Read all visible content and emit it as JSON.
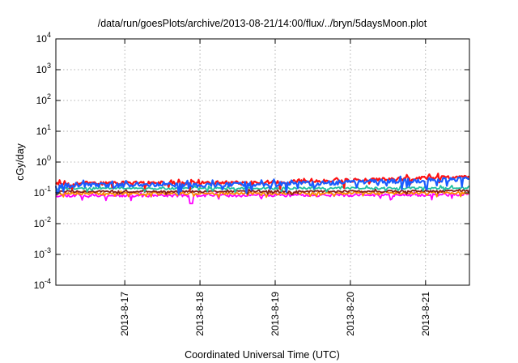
{
  "chart_data": {
    "type": "line",
    "title": "/data/run/goesPlots/archive/2013-08-21/14:00/flux/../bryn/5daysMoon.plot",
    "xlabel": "Coordinated Universal Time (UTC)",
    "ylabel": "cGy/day",
    "x_range_days": [
      "2013-8-16 02:00",
      "2013-8-21 14:00"
    ],
    "x_ticks": [
      "2013-8-17",
      "2013-8-18",
      "2013-8-19",
      "2013-8-20",
      "2013-8-21"
    ],
    "y_scale": "log",
    "ylim": [
      0.0001,
      10000
    ],
    "y_ticks": [
      {
        "base": "10",
        "exp": "-4"
      },
      {
        "base": "10",
        "exp": "-3"
      },
      {
        "base": "10",
        "exp": "-2"
      },
      {
        "base": "10",
        "exp": "-1"
      },
      {
        "base": "10",
        "exp": "0"
      },
      {
        "base": "10",
        "exp": "1"
      },
      {
        "base": "10",
        "exp": "2"
      },
      {
        "base": "10",
        "exp": "3"
      },
      {
        "base": "10",
        "exp": "4"
      }
    ],
    "grid": true,
    "legend": "none",
    "series": [
      {
        "color": "#ff00ff",
        "base_start": 0.082,
        "base_end": 0.088,
        "noise": 0.1,
        "seed": 11
      },
      {
        "color": "#ff8c00",
        "base_start": 0.095,
        "base_end": 0.1,
        "noise": 0.08,
        "seed": 23
      },
      {
        "color": "#8b1a1a",
        "base_start": 0.11,
        "base_end": 0.115,
        "noise": 0.07,
        "seed": 37
      },
      {
        "color": "#20c0a0",
        "base_start": 0.14,
        "base_end": 0.145,
        "noise": 0.08,
        "seed": 41
      },
      {
        "color": "#ff1010",
        "base_start": 0.205,
        "base_end": 0.34,
        "noise": 0.14,
        "seed": 53
      },
      {
        "color": "#1a5cff",
        "base_start": 0.18,
        "base_end": 0.29,
        "noise": 0.16,
        "seed": 67
      }
    ]
  }
}
